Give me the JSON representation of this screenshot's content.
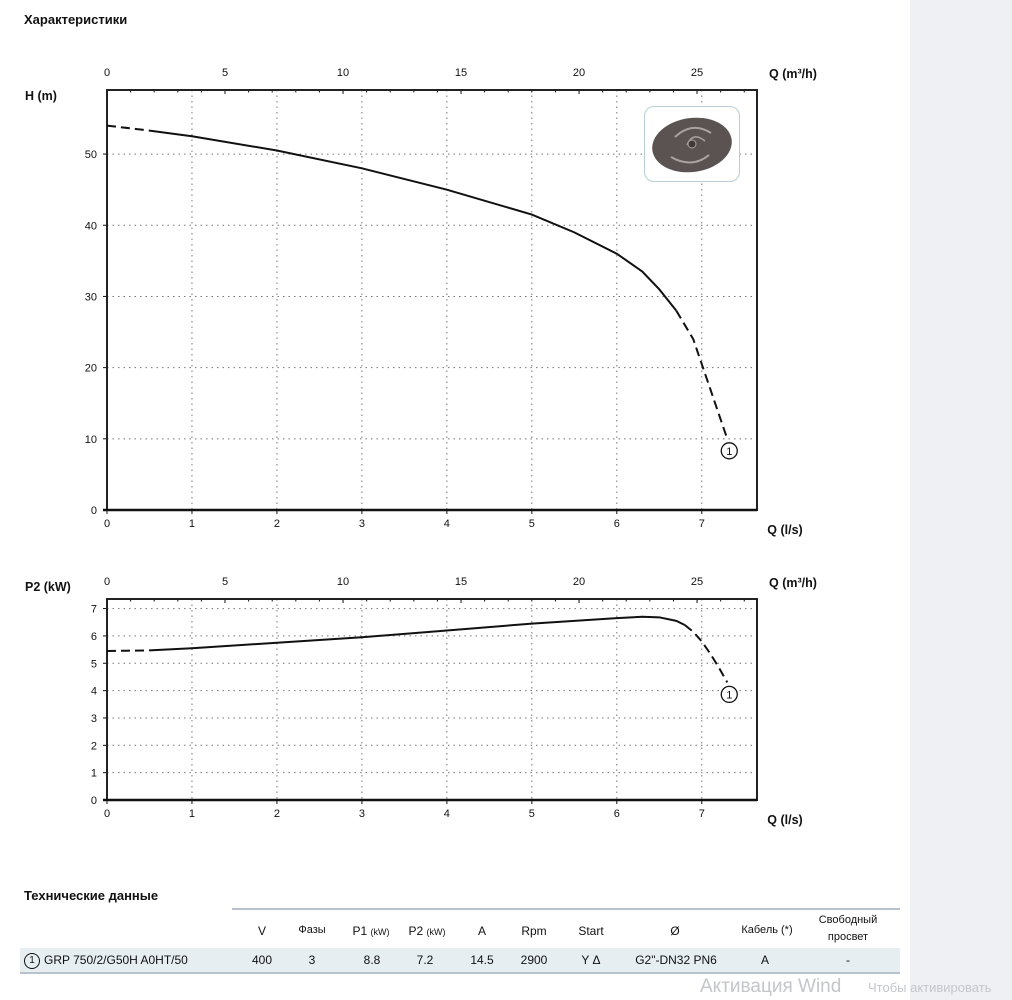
{
  "page": {
    "title": "Характеристики",
    "tech_title": "Технические данные"
  },
  "chart_data": [
    {
      "type": "line",
      "xlabel": "Q (l/s)",
      "x2label": "Q (m³/h)",
      "ylabel": "H (m)",
      "xlim": [
        0,
        7.65
      ],
      "ylim": [
        0,
        59
      ],
      "xticks": [
        0,
        1,
        2,
        3,
        4,
        5,
        6,
        7
      ],
      "x2ticks": [
        0,
        5,
        10,
        15,
        20,
        25
      ],
      "yticks": [
        0,
        10,
        20,
        30,
        40,
        50
      ],
      "grid": true,
      "series": [
        {
          "name": "1",
          "x": [
            0,
            0.5,
            1,
            2,
            3,
            4,
            5,
            5.5,
            6,
            6.3,
            6.5,
            6.7,
            6.9,
            7.0,
            7.1,
            7.2,
            7.3
          ],
          "y": [
            54,
            53.3,
            52.5,
            50.5,
            48,
            45,
            41.5,
            39,
            36,
            33.5,
            31,
            28,
            24,
            20.5,
            17,
            13.5,
            10
          ],
          "dashed_below": 0.5,
          "dashed_above": 6.7
        }
      ]
    },
    {
      "type": "line",
      "xlabel": "Q (l/s)",
      "x2label": "Q (m³/h)",
      "ylabel": "P2 (kW)",
      "xlim": [
        0,
        7.65
      ],
      "ylim": [
        0,
        7.35
      ],
      "xticks": [
        0,
        1,
        2,
        3,
        4,
        5,
        6,
        7
      ],
      "x2ticks": [
        0,
        5,
        10,
        15,
        20,
        25
      ],
      "yticks": [
        0,
        1,
        2,
        3,
        4,
        5,
        6,
        7
      ],
      "grid": true,
      "series": [
        {
          "name": "1",
          "x": [
            0,
            0.5,
            1,
            2,
            3,
            4,
            5,
            6,
            6.3,
            6.5,
            6.7,
            6.8,
            6.9,
            7.0,
            7.1,
            7.2,
            7.3
          ],
          "y": [
            5.45,
            5.47,
            5.55,
            5.75,
            5.95,
            6.2,
            6.45,
            6.65,
            6.7,
            6.68,
            6.55,
            6.4,
            6.15,
            5.8,
            5.35,
            4.85,
            4.3
          ],
          "dashed_below": 0.5,
          "dashed_above": 6.8
        }
      ]
    }
  ],
  "table": {
    "headers": [
      "V",
      "Фазы",
      "P1",
      "P2",
      "A",
      "Rpm",
      "Start",
      "Ø",
      "Кабель (*)",
      "Свободный просвет"
    ],
    "header_units": {
      "P1": "(kW)",
      "P2": "(kW)"
    },
    "rows": [
      {
        "marker": "1",
        "model": "GRP 750/2/G50H A0HT/50",
        "values": [
          "400",
          "3",
          "8.8",
          "7.2",
          "14.5",
          "2900",
          "Y Δ",
          "G2\"-DN32 PN6",
          "A",
          "-"
        ]
      }
    ]
  },
  "watermark": {
    "line1": "Активация Wind",
    "line2": "Чтобы активировать"
  },
  "colors": {
    "table_row": "#e6eef2",
    "side_panel": "#eef0f3",
    "curve": "#111111"
  }
}
